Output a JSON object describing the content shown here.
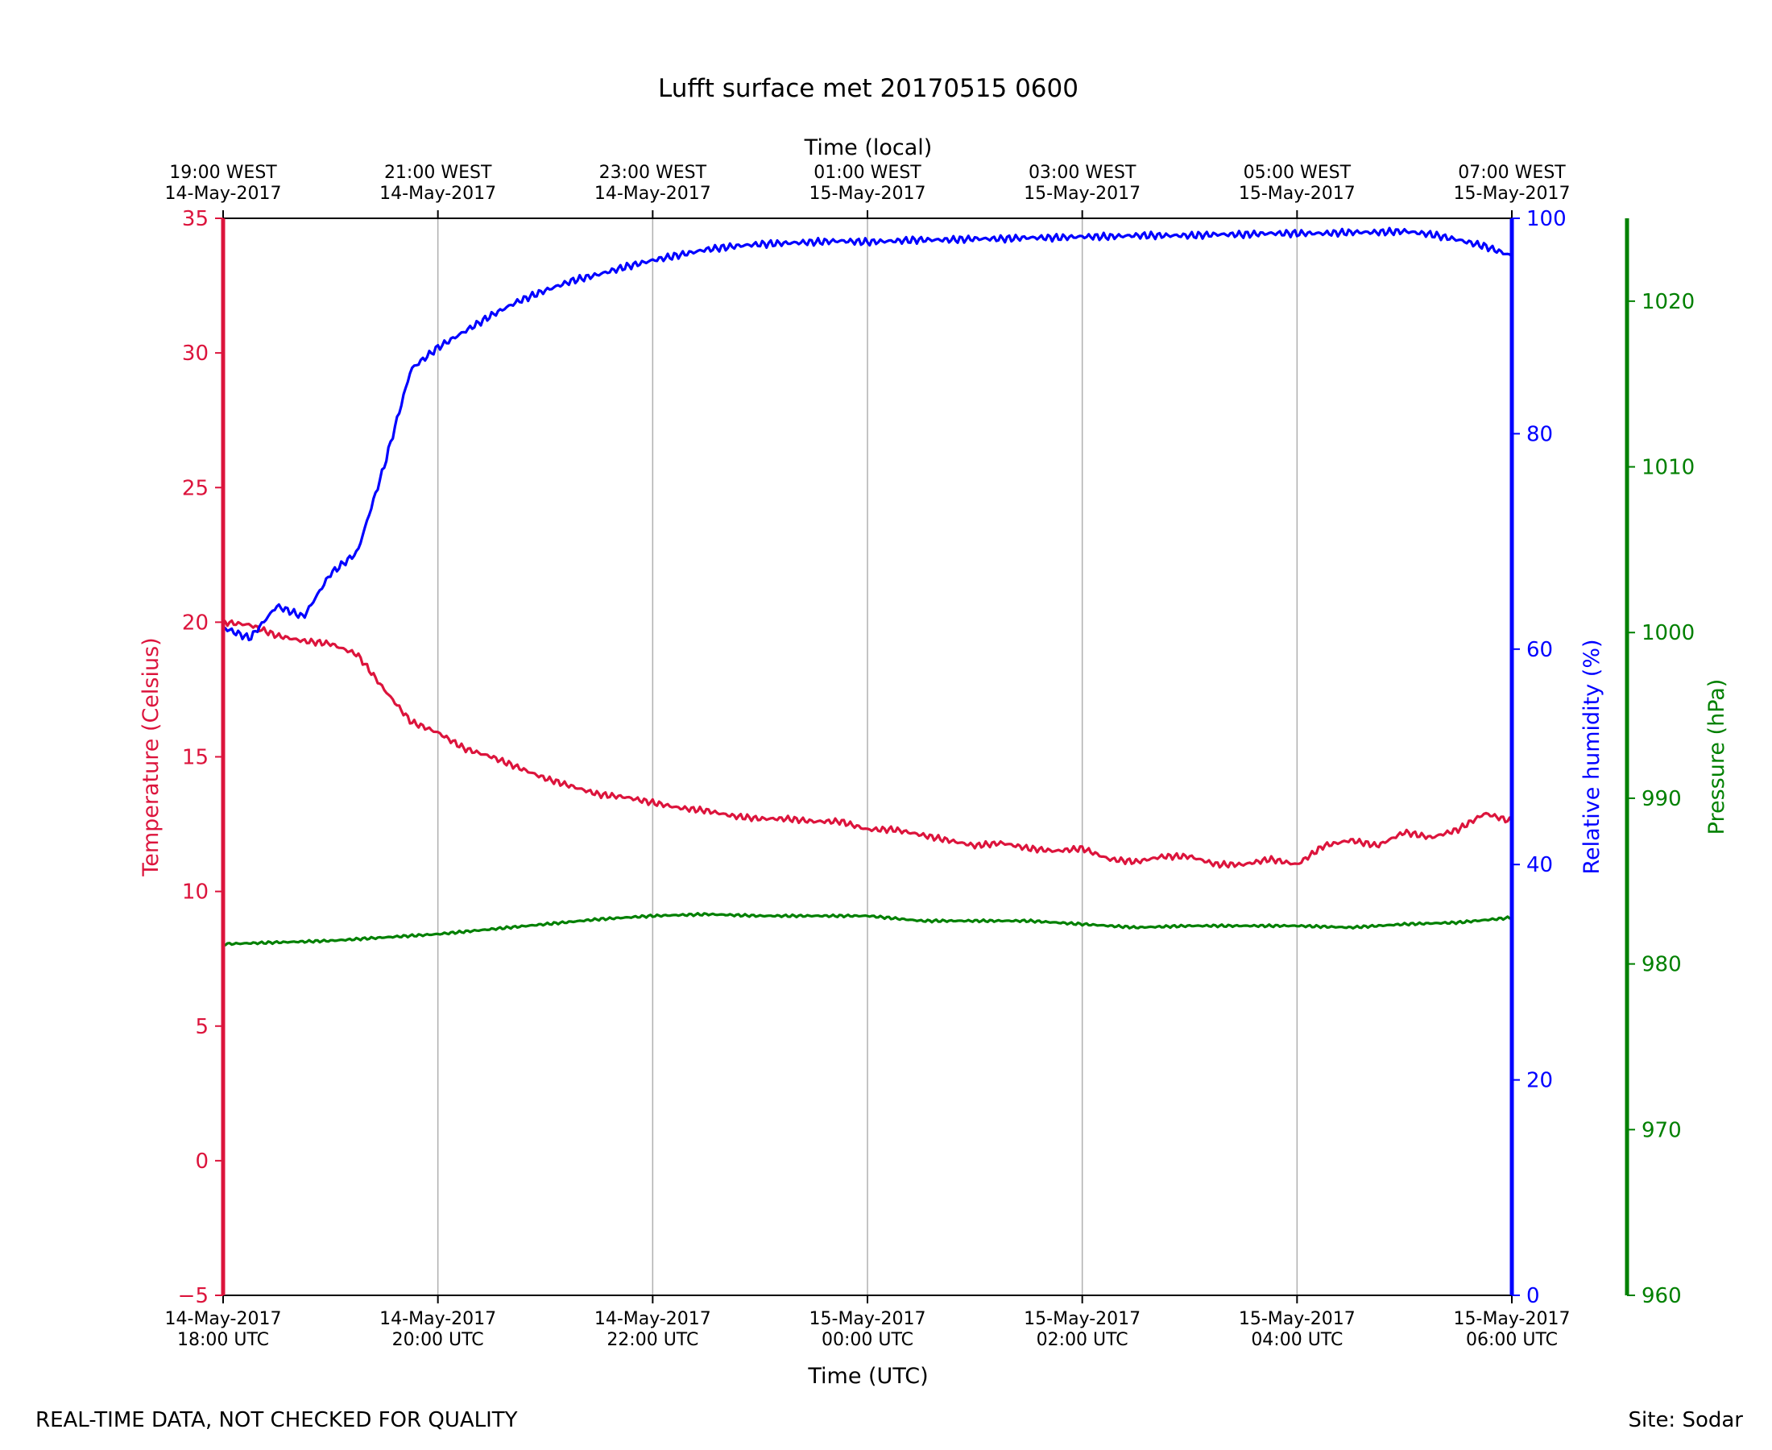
{
  "chart_data": {
    "type": "line",
    "title": "Lufft surface met 20170515 0600",
    "x_top_label": "Time (local)",
    "x_bottom_label": "Time (UTC)",
    "x_range_hours_utc": [
      "14-May-2017 18:00 UTC",
      "15-May-2017 06:00 UTC"
    ],
    "bottom_ticks": [
      {
        "line1": "14-May-2017",
        "line2": "18:00 UTC",
        "hour": 0
      },
      {
        "line1": "14-May-2017",
        "line2": "20:00 UTC",
        "hour": 2
      },
      {
        "line1": "14-May-2017",
        "line2": "22:00 UTC",
        "hour": 4
      },
      {
        "line1": "15-May-2017",
        "line2": "00:00 UTC",
        "hour": 6
      },
      {
        "line1": "15-May-2017",
        "line2": "02:00 UTC",
        "hour": 8
      },
      {
        "line1": "15-May-2017",
        "line2": "04:00 UTC",
        "hour": 10
      },
      {
        "line1": "15-May-2017",
        "line2": "06:00 UTC",
        "hour": 12
      }
    ],
    "top_ticks": [
      {
        "line1": "19:00 WEST",
        "line2": "14-May-2017",
        "hour": 0
      },
      {
        "line1": "21:00 WEST",
        "line2": "14-May-2017",
        "hour": 2
      },
      {
        "line1": "23:00 WEST",
        "line2": "14-May-2017",
        "hour": 4
      },
      {
        "line1": "01:00 WEST",
        "line2": "15-May-2017",
        "hour": 6
      },
      {
        "line1": "03:00 WEST",
        "line2": "15-May-2017",
        "hour": 8
      },
      {
        "line1": "05:00 WEST",
        "line2": "15-May-2017",
        "hour": 10
      },
      {
        "line1": "07:00 WEST",
        "line2": "15-May-2017",
        "hour": 12
      }
    ],
    "vertical_grid": true,
    "axes": {
      "temperature": {
        "label": "Temperature (Celsius)",
        "range": [
          -5,
          35
        ],
        "ticks": [
          -5,
          0,
          5,
          10,
          15,
          20,
          25,
          30,
          35
        ],
        "tick_labels": [
          "−5",
          "0",
          "5",
          "10",
          "15",
          "20",
          "25",
          "30",
          "35"
        ],
        "color": "#dc143c",
        "side": "left"
      },
      "humidity": {
        "label": "Relative humidity (%)",
        "range": [
          0,
          100
        ],
        "ticks": [
          0,
          20,
          40,
          60,
          80,
          100
        ],
        "tick_labels": [
          "0",
          "20",
          "40",
          "60",
          "80",
          "100"
        ],
        "color": "#0000ff",
        "side": "right"
      },
      "pressure": {
        "label": "Pressure (hPa)",
        "range": [
          960,
          1025
        ],
        "ticks": [
          960,
          970,
          980,
          990,
          1000,
          1010,
          1020
        ],
        "tick_labels": [
          "960",
          "970",
          "980",
          "990",
          "1000",
          "1010",
          "1020"
        ],
        "color": "#008000",
        "side": "far-right"
      }
    },
    "series": [
      {
        "axis": "temperature",
        "hours": [
          0,
          0.25,
          0.5,
          0.75,
          1,
          1.25,
          1.5,
          1.75,
          2,
          2.25,
          2.5,
          2.75,
          3,
          3.25,
          3.5,
          3.75,
          4,
          4.25,
          4.5,
          4.75,
          5,
          5.25,
          5.5,
          5.75,
          6,
          6.25,
          6.5,
          6.75,
          7,
          7.25,
          7.5,
          7.75,
          8,
          8.25,
          8.5,
          8.75,
          9,
          9.25,
          9.5,
          9.75,
          10,
          10.25,
          10.5,
          10.75,
          11,
          11.25,
          11.5,
          11.75,
          12
        ],
        "values": [
          20.0,
          19.9,
          19.5,
          19.3,
          19.2,
          18.8,
          17.5,
          16.3,
          15.9,
          15.3,
          15.0,
          14.6,
          14.2,
          13.9,
          13.6,
          13.5,
          13.3,
          13.1,
          13.0,
          12.8,
          12.7,
          12.7,
          12.6,
          12.6,
          12.3,
          12.3,
          12.1,
          11.9,
          11.7,
          11.8,
          11.6,
          11.5,
          11.6,
          11.2,
          11.1,
          11.3,
          11.3,
          11.0,
          11.0,
          11.2,
          11.0,
          11.7,
          11.9,
          11.7,
          12.2,
          12.0,
          12.3,
          12.9,
          12.6
        ]
      },
      {
        "axis": "humidity",
        "hours": [
          0,
          0.25,
          0.5,
          0.75,
          1,
          1.25,
          1.5,
          1.75,
          2,
          2.25,
          2.5,
          2.75,
          3,
          3.25,
          3.5,
          3.75,
          4,
          4.25,
          4.5,
          4.75,
          5,
          5.25,
          5.5,
          5.75,
          6,
          6.25,
          6.5,
          6.75,
          7,
          7.25,
          7.5,
          7.75,
          8,
          8.25,
          8.5,
          8.75,
          9,
          9.25,
          9.5,
          9.75,
          10,
          10.25,
          10.5,
          10.75,
          11,
          11.25,
          11.5,
          11.75,
          12
        ],
        "values": [
          62,
          61,
          64,
          63,
          67,
          69,
          77,
          86,
          88,
          89.5,
          91,
          92.3,
          93.3,
          94.2,
          94.8,
          95.5,
          96.1,
          96.6,
          97.1,
          97.4,
          97.6,
          97.7,
          97.8,
          97.9,
          97.8,
          97.9,
          98.0,
          98.0,
          98.1,
          98.1,
          98.2,
          98.2,
          98.3,
          98.3,
          98.4,
          98.4,
          98.4,
          98.5,
          98.5,
          98.6,
          98.6,
          98.6,
          98.7,
          98.7,
          98.8,
          98.5,
          98.0,
          97.4,
          96.5
        ]
      },
      {
        "axis": "pressure",
        "hours": [
          0,
          0.5,
          1,
          1.5,
          2,
          2.5,
          3,
          3.5,
          4,
          4.5,
          5,
          5.5,
          6,
          6.5,
          7,
          7.5,
          8,
          8.5,
          9,
          9.5,
          10,
          10.5,
          11,
          11.5,
          12
        ],
        "values": [
          981.2,
          981.3,
          981.4,
          981.6,
          981.8,
          982.1,
          982.4,
          982.7,
          982.9,
          983.0,
          982.9,
          982.9,
          982.9,
          982.6,
          982.6,
          982.6,
          982.4,
          982.2,
          982.3,
          982.3,
          982.3,
          982.2,
          982.4,
          982.5,
          982.8
        ]
      }
    ]
  },
  "footer": {
    "left_note": "REAL-TIME DATA, NOT CHECKED FOR QUALITY",
    "right_note": "Site: Sodar"
  }
}
